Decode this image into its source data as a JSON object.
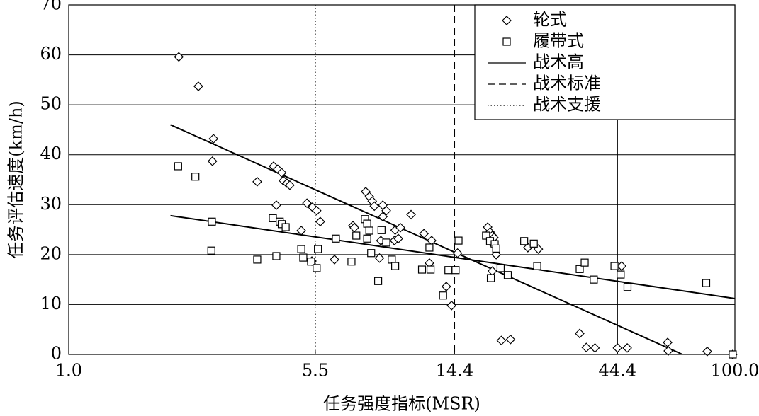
{
  "chart_data": {
    "type": "scatter",
    "xlabel": "任务强度指标(MSR)",
    "ylabel": "任务评估速度(km/h)",
    "xscale": "log",
    "xlim": [
      1.0,
      100.0
    ],
    "xticks": [
      {
        "value": 1.0,
        "label": "1.0"
      },
      5.5,
      14.4,
      44.4,
      {
        "value": 100.0,
        "label": "100.0"
      }
    ],
    "ylim": [
      0,
      70
    ],
    "yticks": [
      0,
      10,
      20,
      30,
      40,
      50,
      60,
      70
    ],
    "grid": "y",
    "legend": "upper right",
    "color": "#000000",
    "series": [
      {
        "name": "轮式",
        "kind": "points",
        "marker": "diamond",
        "x": [
          2.14,
          2.45,
          2.72,
          2.7,
          3.68,
          4.12,
          4.24,
          4.36,
          4.41,
          4.52,
          4.61,
          4.2,
          4.99,
          5.19,
          5.39,
          5.55,
          5.37,
          5.69,
          6.28,
          7.13,
          7.2,
          7.79,
          7.99,
          8.15,
          8.27,
          8.77,
          8.98,
          8.77,
          8.65,
          8.57,
          9.5,
          9.55,
          9.76,
          9.9,
          10.66,
          11.65,
          12.29,
          12.1,
          13.6,
          14.1,
          14.7,
          18.1,
          18.4,
          18.7,
          18.9,
          18.7,
          19.2,
          18.7,
          19.9,
          21.2,
          23.9,
          25.7,
          34.2,
          35.8,
          38.0,
          44.4,
          47.5,
          45.7,
          62.8,
          63.1,
          82.6,
          98.5
        ],
        "values": [
          59.6,
          53.7,
          43.2,
          38.7,
          34.6,
          37.7,
          37.1,
          36.4,
          34.8,
          34.3,
          33.9,
          29.9,
          24.8,
          30.3,
          29.5,
          28.8,
          18.7,
          26.6,
          19.0,
          25.8,
          25.4,
          32.6,
          31.6,
          30.7,
          29.7,
          29.9,
          28.8,
          27.6,
          22.8,
          19.3,
          22.8,
          24.9,
          23.2,
          25.4,
          28.0,
          24.2,
          22.8,
          18.3,
          13.6,
          9.8,
          20.3,
          25.5,
          24.5,
          23.8,
          23.4,
          22.2,
          20.0,
          16.7,
          2.8,
          3.0,
          21.4,
          21.1,
          4.2,
          1.4,
          1.3,
          1.3,
          1.3,
          17.7,
          2.4,
          0.7,
          0.6,
          0
        ]
      },
      {
        "name": "履带式",
        "kind": "points",
        "marker": "square",
        "x": [
          2.13,
          2.4,
          2.69,
          2.68,
          3.68,
          4.2,
          4.1,
          4.3,
          4.36,
          4.48,
          4.99,
          5.06,
          5.34,
          5.55,
          5.6,
          6.34,
          7.06,
          7.3,
          7.75,
          7.87,
          7.99,
          7.87,
          8.09,
          8.49,
          8.69,
          8.98,
          9.33,
          9.55,
          11.5,
          12.1,
          12.2,
          13.3,
          13.8,
          14.5,
          14.8,
          17.9,
          18.4,
          19.0,
          19.2,
          18.5,
          19.8,
          20.8,
          23.3,
          24.9,
          25.5,
          34.2,
          35.4,
          37.7,
          43.5,
          45.4,
          47.6,
          82.0,
          98.5
        ],
        "values": [
          37.7,
          35.6,
          26.6,
          20.8,
          19.0,
          19.7,
          27.3,
          26.6,
          26.1,
          25.5,
          21.1,
          19.4,
          18.6,
          17.3,
          21.1,
          23.2,
          18.6,
          23.8,
          27.1,
          26.2,
          24.8,
          23.2,
          20.3,
          14.7,
          24.9,
          22.4,
          19.0,
          17.7,
          17.0,
          21.4,
          17.0,
          11.8,
          16.9,
          16.9,
          22.8,
          23.8,
          22.7,
          22.1,
          21.2,
          15.3,
          17.3,
          15.9,
          22.7,
          22.2,
          17.7,
          17.1,
          18.4,
          15.0,
          17.7,
          16.0,
          13.5,
          14.3,
          0
        ]
      },
      {
        "name": "战术高",
        "kind": "threshold",
        "style": "solid",
        "x": 44.4
      },
      {
        "name": "战术标准",
        "kind": "threshold",
        "style": "dashed",
        "x": 14.4
      },
      {
        "name": "战术支援",
        "kind": "threshold",
        "style": "dotted",
        "x": 5.5
      }
    ],
    "fit_lines": [
      {
        "x": [
          2.02,
          69.6
        ],
        "values": [
          46,
          0
        ]
      },
      {
        "x": [
          2.02,
          100.0
        ],
        "values": [
          27.8,
          11.2
        ]
      }
    ]
  }
}
